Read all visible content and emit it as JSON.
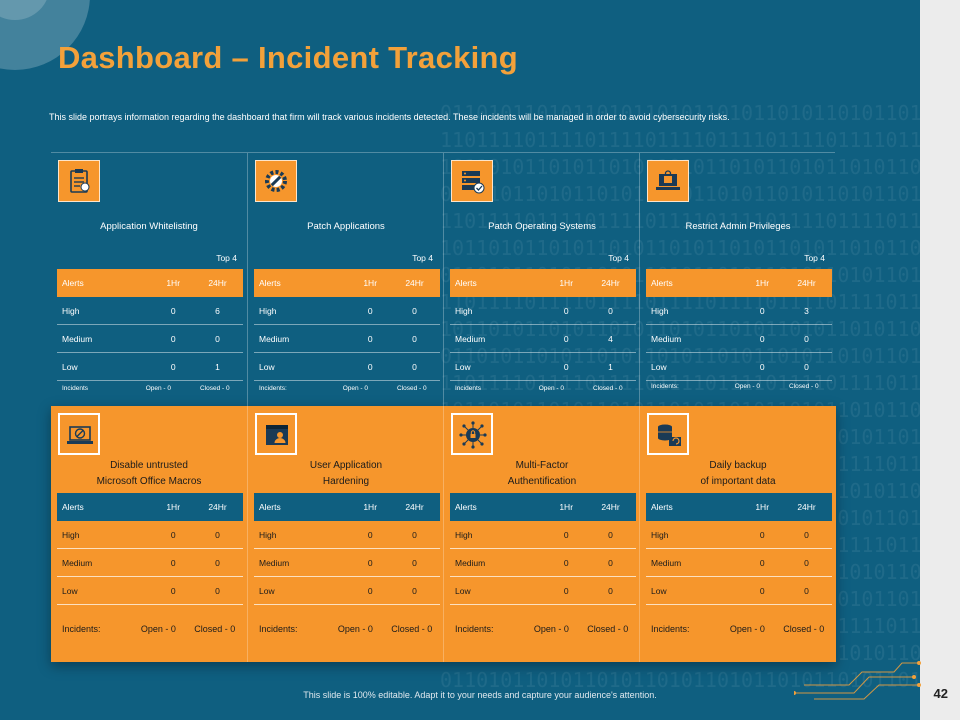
{
  "title": "Dashboard – Incident Tracking",
  "subtitle": "This slide portrays information regarding the dashboard that firm will track various incidents detected. These incidents will be managed in order to avoid cybersecurity risks.",
  "top_label": "Top 4",
  "colors": {
    "background": "#0f5f80",
    "accent": "#f6962c",
    "title": "#f3a13a"
  },
  "top_cards": [
    {
      "title": "Application Whitelisting",
      "icon": "clipboard-checklist-icon",
      "headers": [
        "Alerts",
        "1Hr",
        "24Hr"
      ],
      "rows": [
        {
          "level": "High",
          "h1": "0",
          "h24": "6"
        },
        {
          "level": "Medium",
          "h1": "0",
          "h24": "0"
        },
        {
          "level": "Low",
          "h1": "0",
          "h24": "1"
        }
      ],
      "incidents": {
        "label": "Incidents",
        "open": "Open - 0",
        "closed": "Closed - 0"
      }
    },
    {
      "title": "Patch Applications",
      "icon": "gear-wrench-icon",
      "headers": [
        "Alerts",
        "1Hr",
        "24Hr"
      ],
      "rows": [
        {
          "level": "High",
          "h1": "0",
          "h24": "0"
        },
        {
          "level": "Medium",
          "h1": "0",
          "h24": "0"
        },
        {
          "level": "Low",
          "h1": "0",
          "h24": "0"
        }
      ],
      "incidents": {
        "label": "Incidents:",
        "open": "Open - 0",
        "closed": "Closed - 0"
      }
    },
    {
      "title": "Patch Operating Systems",
      "icon": "server-check-icon",
      "headers": [
        "Alerts",
        "1Hr",
        "24Hr"
      ],
      "rows": [
        {
          "level": "High",
          "h1": "0",
          "h24": "0"
        },
        {
          "level": "Medium",
          "h1": "0",
          "h24": "4"
        },
        {
          "level": "Low",
          "h1": "0",
          "h24": "1"
        }
      ],
      "incidents": {
        "label": "Incidents",
        "open": "Open - 0",
        "closed": "Closed - 0"
      }
    },
    {
      "title": "Restrict Admin Privileges",
      "icon": "laptop-lock-icon",
      "headers": [
        "Alerts",
        "1Hr",
        "24Hr"
      ],
      "rows": [
        {
          "level": "High",
          "h1": "0",
          "h24": "3"
        },
        {
          "level": "Medium",
          "h1": "0",
          "h24": "0"
        },
        {
          "level": "Low",
          "h1": "0",
          "h24": "0"
        }
      ],
      "incidents": {
        "label": "Incidents:",
        "open": "Open - 0",
        "closed": "Closed - 0"
      }
    }
  ],
  "bottom_cards": [
    {
      "title_line1": "Disable untrusted",
      "title_line2": "Microsoft Office Macros",
      "icon": "blocked-laptop-icon",
      "headers": [
        "Alerts",
        "1Hr",
        "24Hr"
      ],
      "rows": [
        {
          "level": "High",
          "h1": "0",
          "h24": "0"
        },
        {
          "level": "Medium",
          "h1": "0",
          "h24": "0"
        },
        {
          "level": "Low",
          "h1": "0",
          "h24": "0"
        }
      ],
      "incidents": {
        "label": "Incidents:",
        "open": "Open - 0",
        "closed": "Closed - 0"
      }
    },
    {
      "title_line1": "User Application",
      "title_line2": "Hardening",
      "icon": "user-window-icon",
      "headers": [
        "Alerts",
        "1Hr",
        "24Hr"
      ],
      "rows": [
        {
          "level": "High",
          "h1": "0",
          "h24": "0"
        },
        {
          "level": "Medium",
          "h1": "0",
          "h24": "0"
        },
        {
          "level": "Low",
          "h1": "0",
          "h24": "0"
        }
      ],
      "incidents": {
        "label": "Incidents:",
        "open": "Open - 0",
        "closed": "Closed - 0"
      }
    },
    {
      "title_line1": "Multi-Factor",
      "title_line2": "Authentification",
      "icon": "network-lock-icon",
      "headers": [
        "Alerts",
        "1Hr",
        "24Hr"
      ],
      "rows": [
        {
          "level": "High",
          "h1": "0",
          "h24": "0"
        },
        {
          "level": "Medium",
          "h1": "0",
          "h24": "0"
        },
        {
          "level": "Low",
          "h1": "0",
          "h24": "0"
        }
      ],
      "incidents": {
        "label": "Incidents:",
        "open": "Open - 0",
        "closed": "Closed - 0"
      }
    },
    {
      "title_line1": "Daily backup",
      "title_line2": "of important data",
      "icon": "database-backup-icon",
      "headers": [
        "Alerts",
        "1Hr",
        "24Hr"
      ],
      "rows": [
        {
          "level": "High",
          "h1": "0",
          "h24": "0"
        },
        {
          "level": "Medium",
          "h1": "0",
          "h24": "0"
        },
        {
          "level": "Low",
          "h1": "0",
          "h24": "0"
        }
      ],
      "incidents": {
        "label": "Incidents:",
        "open": "Open - 0",
        "closed": "Closed - 0"
      }
    }
  ],
  "footer": "This slide is 100% editable. Adapt it to your needs and capture your audience's attention.",
  "page_number": "42"
}
